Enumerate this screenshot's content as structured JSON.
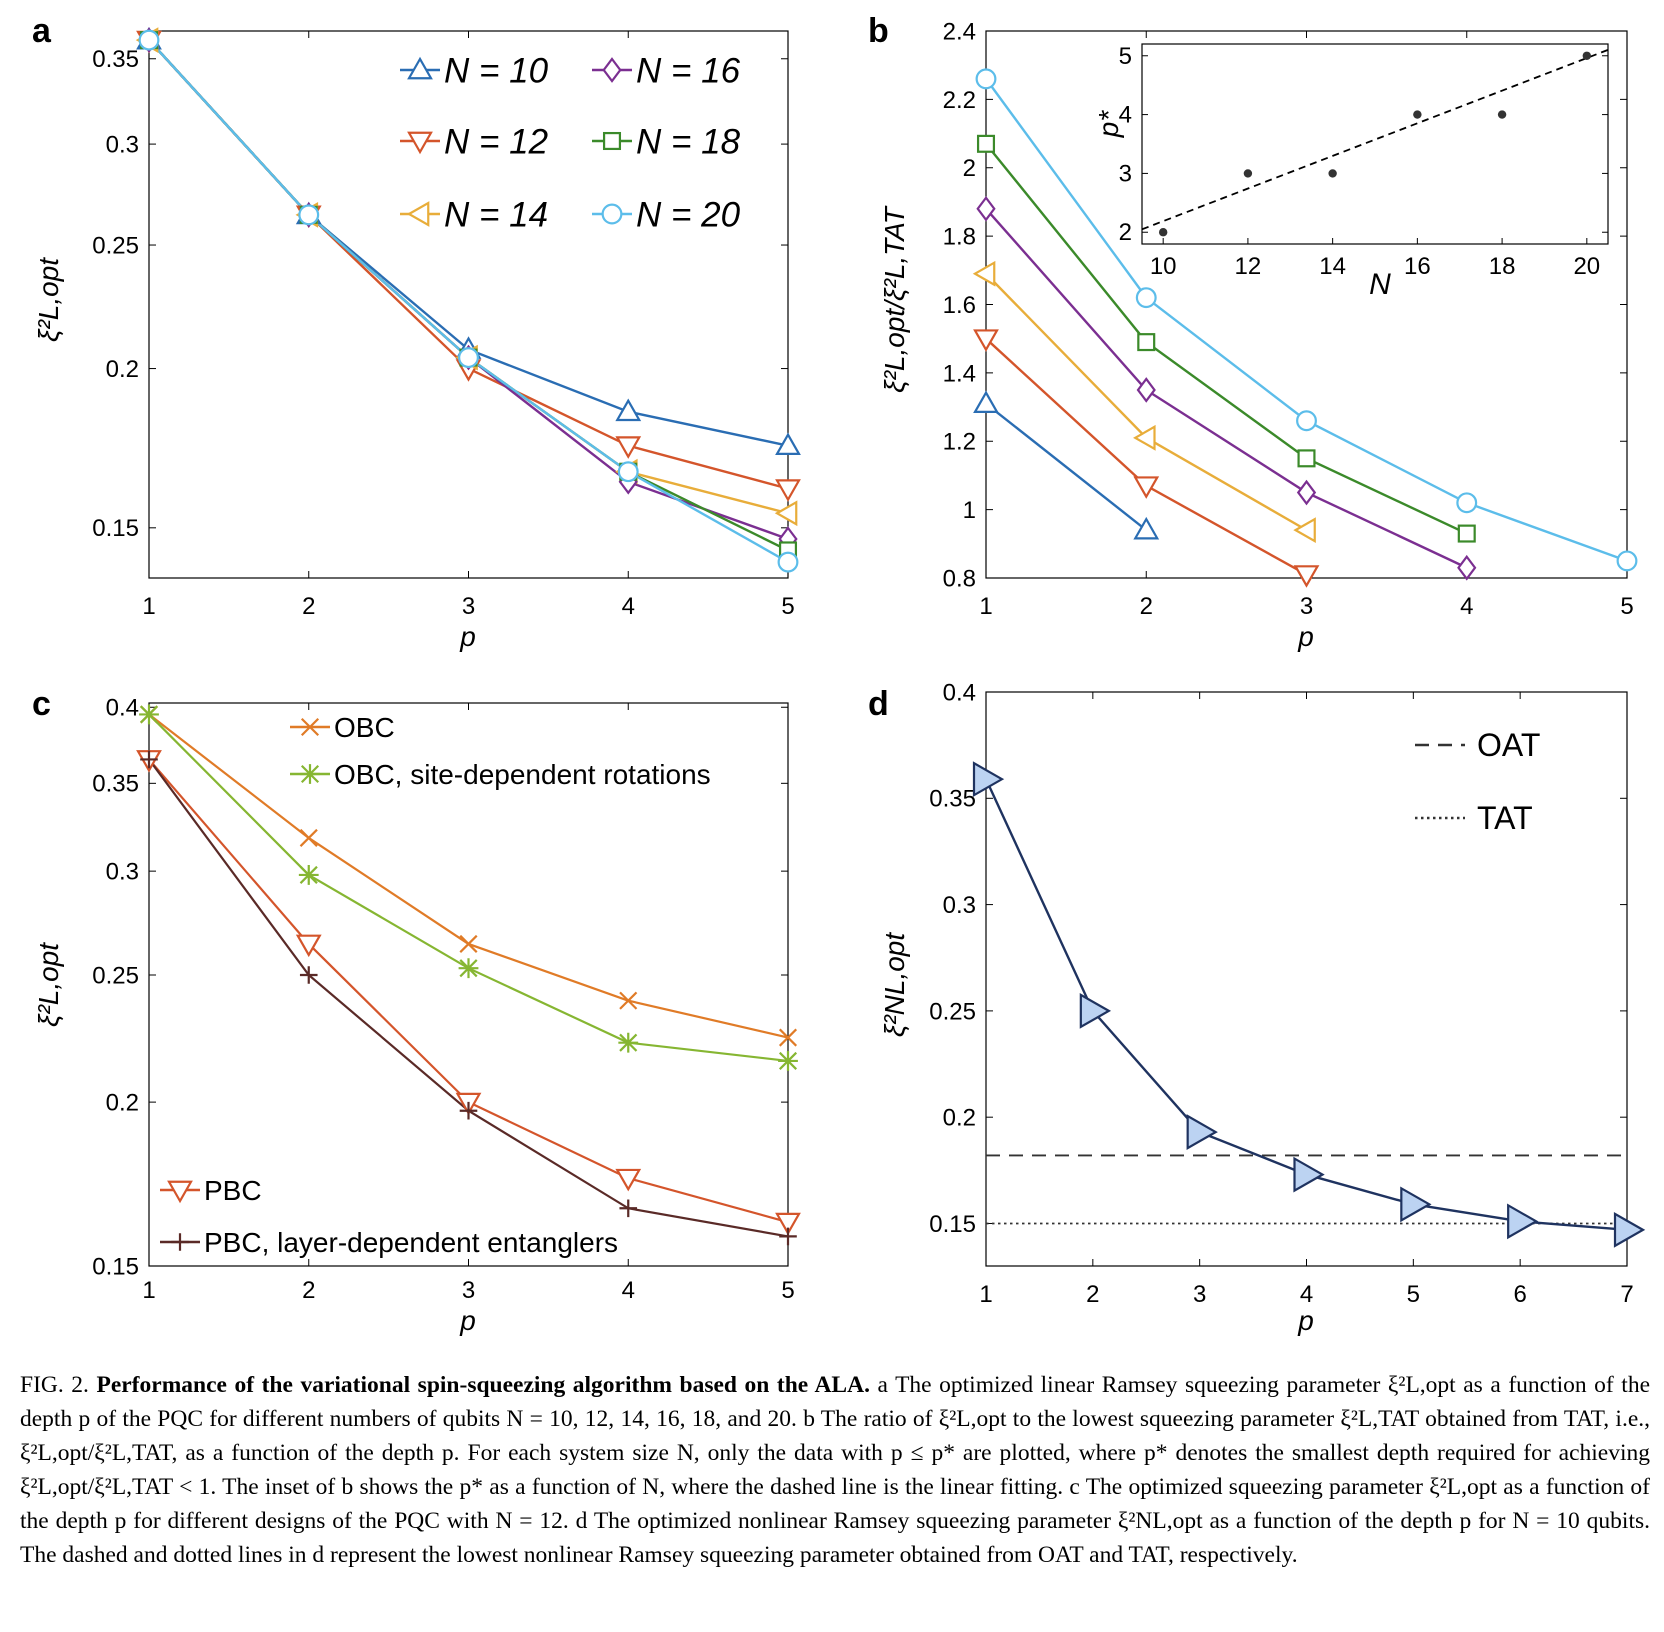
{
  "figure": {
    "panels": [
      {
        "letter": "a",
        "ylabel": "ξ²L,opt",
        "xlabel": "p"
      },
      {
        "letter": "b",
        "ylabel": "ξ²L,opt/ξ²L,TAT",
        "xlabel": "p"
      },
      {
        "letter": "c",
        "ylabel": "ξ²L,opt",
        "xlabel": "p"
      },
      {
        "letter": "d",
        "ylabel": "ξ²NL,opt",
        "xlabel": "p"
      }
    ]
  },
  "caption": {
    "label": "FIG. 2.",
    "title": "Performance of the variational spin-squeezing algorithm based on the ALA.",
    "body": "a The optimized linear Ramsey squeezing parameter ξ²L,opt as a function of the depth p of the PQC for different numbers of qubits N = 10, 12, 14, 16, 18, and 20. b The ratio of ξ²L,opt to the lowest squeezing parameter ξ²L,TAT obtained from TAT, i.e., ξ²L,opt/ξ²L,TAT, as a function of the depth p. For each system size N, only the data with p ≤ p* are plotted, where p* denotes the smallest depth required for achieving ξ²L,opt/ξ²L,TAT < 1. The inset of b shows the p* as a function of N, where the dashed line is the linear fitting. c The optimized squeezing parameter ξ²L,opt as a function of the depth p for different designs of the PQC with N = 12. d The optimized nonlinear Ramsey squeezing parameter ξ²NL,opt as a function of the depth p for N = 10 qubits. The dashed and dotted lines in d represent the lowest nonlinear Ramsey squeezing parameter obtained from OAT and TAT, respectively."
  },
  "chart_data": [
    {
      "id": "a",
      "type": "line",
      "yscale": "log",
      "xlabel": "p",
      "ylabel": "ξ²L,opt",
      "xlim": [
        1,
        5
      ],
      "ylim": [
        0.137,
        0.368
      ],
      "xticks": [
        1,
        2,
        3,
        4,
        5
      ],
      "yticks": [
        0.15,
        0.2,
        0.25,
        0.3,
        0.35
      ],
      "legend_position": "top-right",
      "series": [
        {
          "name": "N = 10",
          "color": "#2a6db3",
          "marker": "triangle-up",
          "x": [
            1,
            2,
            3,
            4,
            5
          ],
          "values": [
            0.362,
            0.264,
            0.207,
            0.185,
            0.174
          ]
        },
        {
          "name": "N = 12",
          "color": "#d4552b",
          "marker": "triangle-down",
          "x": [
            1,
            2,
            3,
            4,
            5
          ],
          "values": [
            0.362,
            0.264,
            0.2,
            0.174,
            0.161
          ]
        },
        {
          "name": "N = 14",
          "color": "#e8ad3a",
          "marker": "triangle-left",
          "x": [
            1,
            2,
            3,
            4,
            5
          ],
          "values": [
            0.362,
            0.264,
            0.204,
            0.166,
            0.154
          ]
        },
        {
          "name": "N = 16",
          "color": "#7b2f91",
          "marker": "diamond",
          "x": [
            1,
            2,
            3,
            4,
            5
          ],
          "values": [
            0.362,
            0.264,
            0.204,
            0.163,
            0.147
          ]
        },
        {
          "name": "N = 18",
          "color": "#3b8a2a",
          "marker": "square",
          "x": [
            1,
            2,
            3,
            4,
            5
          ],
          "values": [
            0.362,
            0.264,
            0.204,
            0.166,
            0.144
          ]
        },
        {
          "name": "N = 20",
          "color": "#5cbdea",
          "marker": "circle",
          "x": [
            1,
            2,
            3,
            4,
            5
          ],
          "values": [
            0.362,
            0.264,
            0.204,
            0.166,
            0.141
          ]
        }
      ]
    },
    {
      "id": "b",
      "type": "line",
      "xlabel": "p",
      "ylabel": "ξ²L,opt/ξ²L,TAT",
      "xlim": [
        1,
        5
      ],
      "ylim": [
        0.8,
        2.4
      ],
      "xticks": [
        1,
        2,
        3,
        4,
        5
      ],
      "yticks": [
        0.8,
        1,
        1.2,
        1.4,
        1.6,
        1.8,
        2,
        2.2,
        2.4
      ],
      "series": [
        {
          "name": "N = 10",
          "color": "#2a6db3",
          "marker": "triangle-up",
          "x": [
            1,
            2
          ],
          "values": [
            1.31,
            0.94
          ]
        },
        {
          "name": "N = 12",
          "color": "#d4552b",
          "marker": "triangle-down",
          "x": [
            1,
            2,
            3
          ],
          "values": [
            1.5,
            1.07,
            0.81
          ]
        },
        {
          "name": "N = 14",
          "color": "#e8ad3a",
          "marker": "triangle-left",
          "x": [
            1,
            2,
            3
          ],
          "values": [
            1.69,
            1.21,
            0.94
          ]
        },
        {
          "name": "N = 16",
          "color": "#7b2f91",
          "marker": "diamond",
          "x": [
            1,
            2,
            3,
            4
          ],
          "values": [
            1.88,
            1.35,
            1.05,
            0.83
          ]
        },
        {
          "name": "N = 18",
          "color": "#3b8a2a",
          "marker": "square",
          "x": [
            1,
            2,
            3,
            4
          ],
          "values": [
            2.07,
            1.49,
            1.15,
            0.93
          ]
        },
        {
          "name": "N = 20",
          "color": "#5cbdea",
          "marker": "circle",
          "x": [
            1,
            2,
            3,
            4,
            5
          ],
          "values": [
            2.26,
            1.62,
            1.26,
            1.02,
            0.85
          ]
        }
      ],
      "inset": {
        "type": "scatter",
        "xlabel": "N",
        "ylabel": "p*",
        "xlim": [
          9.5,
          20.5
        ],
        "ylim": [
          1.8,
          5.2
        ],
        "xticks": [
          10,
          12,
          14,
          16,
          18,
          20
        ],
        "yticks": [
          2,
          3,
          4,
          5
        ],
        "points": {
          "x": [
            10,
            12,
            14,
            16,
            18,
            20
          ],
          "values": [
            2,
            3,
            3,
            4,
            4,
            5
          ]
        },
        "fit": {
          "style": "dashed",
          "x": [
            9.5,
            20.5
          ],
          "values": [
            2.05,
            5.1
          ]
        }
      }
    },
    {
      "id": "c",
      "type": "line",
      "yscale": "log",
      "xlabel": "p",
      "ylabel": "ξ²L,opt",
      "xlim": [
        1,
        5
      ],
      "ylim": [
        0.15,
        0.403
      ],
      "xticks": [
        1,
        2,
        3,
        4,
        5
      ],
      "yticks": [
        0.15,
        0.2,
        0.25,
        0.3,
        0.35,
        0.4
      ],
      "series": [
        {
          "name": "OBC",
          "color": "#e07b27",
          "marker": "x",
          "x": [
            1,
            2,
            3,
            4,
            5
          ],
          "values": [
            0.395,
            0.318,
            0.264,
            0.239,
            0.224
          ]
        },
        {
          "name": "OBC, site-dependent rotations",
          "color": "#86b632",
          "marker": "asterisk",
          "x": [
            1,
            2,
            3,
            4,
            5
          ],
          "values": [
            0.395,
            0.298,
            0.253,
            0.222,
            0.215
          ]
        },
        {
          "name": "PBC",
          "color": "#d4552b",
          "marker": "triangle-down",
          "x": [
            1,
            2,
            3,
            4,
            5
          ],
          "values": [
            0.365,
            0.264,
            0.2,
            0.175,
            0.162
          ]
        },
        {
          "name": "PBC, layer-dependent entanglers",
          "color": "#5a2a27",
          "marker": "plus",
          "x": [
            1,
            2,
            3,
            4,
            5
          ],
          "values": [
            0.365,
            0.25,
            0.197,
            0.166,
            0.158
          ]
        }
      ]
    },
    {
      "id": "d",
      "type": "line",
      "xlabel": "p",
      "ylabel": "ξ²NL,opt",
      "xlim": [
        1,
        7
      ],
      "ylim": [
        0.13,
        0.4
      ],
      "xticks": [
        1,
        2,
        3,
        4,
        5,
        6,
        7
      ],
      "yticks": [
        0.15,
        0.2,
        0.25,
        0.3,
        0.35,
        0.4
      ],
      "series": [
        {
          "name": "N = 10",
          "color": "#1f3360",
          "marker": "triangle-right",
          "marker_fill": "#bcd3f2",
          "x": [
            1,
            2,
            3,
            4,
            5,
            6,
            7
          ],
          "values": [
            0.359,
            0.25,
            0.193,
            0.173,
            0.159,
            0.151,
            0.147
          ]
        }
      ],
      "reference_lines": [
        {
          "name": "OAT",
          "style": "dashed",
          "value": 0.182
        },
        {
          "name": "TAT",
          "style": "dotted",
          "value": 0.15
        }
      ]
    }
  ]
}
